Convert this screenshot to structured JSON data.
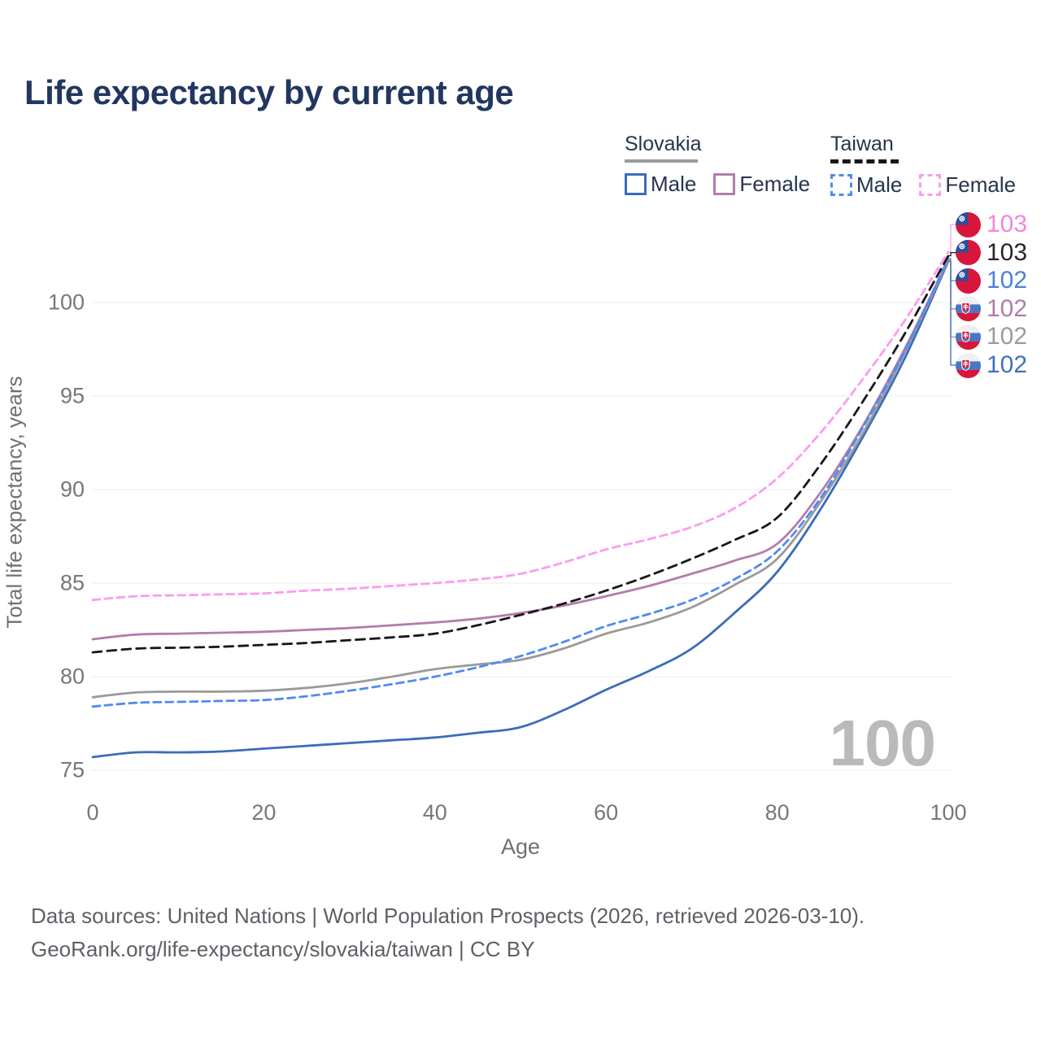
{
  "title": "Life expectancy by current age",
  "legend": {
    "groups": [
      {
        "country": "Slovakia",
        "line_style": "solid",
        "underline_color": "#9a9a9a",
        "items": [
          {
            "label": "Male",
            "color": "#3a6db8"
          },
          {
            "label": "Female",
            "color": "#b27dac"
          }
        ]
      },
      {
        "country": "Taiwan",
        "line_style": "dashed",
        "underline_color": "#17171b",
        "items": [
          {
            "label": "Male",
            "color": "#4f8bf0"
          },
          {
            "label": "Female",
            "color": "#fb9cf0"
          }
        ]
      }
    ]
  },
  "chart_data": {
    "type": "line",
    "title": "Life expectancy by current age",
    "xlabel": "Age",
    "ylabel": "Total life expectancy, years",
    "x": [
      0,
      5,
      10,
      15,
      20,
      25,
      30,
      35,
      40,
      45,
      50,
      55,
      60,
      65,
      70,
      75,
      80,
      85,
      90,
      95,
      100
    ],
    "xticks": [
      0,
      20,
      40,
      60,
      80,
      100
    ],
    "yticks": [
      75,
      80,
      85,
      90,
      95,
      100
    ],
    "xlim": [
      0,
      100
    ],
    "ylim": [
      74,
      104
    ],
    "grid": "horizontal",
    "legend_position": "top-right",
    "series": [
      {
        "key": "slovakia-male",
        "name": "Slovakia Male",
        "color": "#3a6db8",
        "dash": "none",
        "values": [
          75.7,
          75.95,
          75.95,
          76.0,
          76.15,
          76.3,
          76.45,
          76.6,
          76.75,
          77.0,
          77.3,
          78.2,
          79.3,
          80.3,
          81.5,
          83.4,
          85.6,
          88.9,
          92.8,
          97.1,
          102.2
        ]
      },
      {
        "key": "slovakia-total",
        "name": "Slovakia",
        "color": "#9a9a9a",
        "dash": "none",
        "values": [
          78.9,
          79.15,
          79.2,
          79.2,
          79.25,
          79.4,
          79.65,
          80.0,
          80.4,
          80.65,
          80.9,
          81.5,
          82.3,
          82.9,
          83.7,
          84.9,
          86.3,
          89.3,
          93.0,
          97.4,
          102.25
        ]
      },
      {
        "key": "slovakia-female",
        "name": "Slovakia Female",
        "color": "#b27dac",
        "dash": "none",
        "values": [
          82.0,
          82.25,
          82.3,
          82.35,
          82.4,
          82.5,
          82.6,
          82.75,
          82.9,
          83.1,
          83.4,
          83.8,
          84.3,
          84.85,
          85.5,
          86.2,
          87.1,
          89.8,
          93.4,
          97.6,
          102.3
        ]
      },
      {
        "key": "taiwan-male",
        "name": "Taiwan Male",
        "color": "#4f8bf0",
        "dash": "9 6",
        "values": [
          78.4,
          78.6,
          78.65,
          78.7,
          78.75,
          78.95,
          79.25,
          79.6,
          80.0,
          80.5,
          81.1,
          81.85,
          82.7,
          83.35,
          84.1,
          85.2,
          86.7,
          89.5,
          93.3,
          97.5,
          102.35
        ]
      },
      {
        "key": "taiwan-total",
        "name": "Taiwan",
        "color": "#17171b",
        "dash": "11 7",
        "values": [
          81.3,
          81.5,
          81.55,
          81.6,
          81.7,
          81.8,
          81.95,
          82.1,
          82.3,
          82.75,
          83.3,
          83.9,
          84.6,
          85.4,
          86.3,
          87.3,
          88.5,
          91.3,
          94.7,
          98.4,
          102.5
        ]
      },
      {
        "key": "taiwan-female",
        "name": "Taiwan Female",
        "color": "#fb9cf0",
        "dash": "9 6",
        "values": [
          84.1,
          84.3,
          84.35,
          84.4,
          84.45,
          84.6,
          84.7,
          84.85,
          85.0,
          85.2,
          85.5,
          86.1,
          86.8,
          87.35,
          88.0,
          89.0,
          90.6,
          93.0,
          95.9,
          99.1,
          102.7
        ]
      }
    ],
    "end_labels": [
      {
        "series": "taiwan-female",
        "value": "103",
        "text_color": "#f585da",
        "flag": "taiwan"
      },
      {
        "series": "taiwan-total",
        "value": "103",
        "text_color": "#26262a",
        "flag": "taiwan"
      },
      {
        "series": "taiwan-male",
        "value": "102",
        "text_color": "#4a80d8",
        "flag": "taiwan"
      },
      {
        "series": "slovakia-female",
        "value": "102",
        "text_color": "#ae7cae",
        "flag": "slovakia"
      },
      {
        "series": "slovakia-total",
        "value": "102",
        "text_color": "#9b9b9f",
        "flag": "slovakia"
      },
      {
        "series": "slovakia-male",
        "value": "102",
        "text_color": "#3f72bf",
        "flag": "slovakia"
      }
    ],
    "grid_color": "#ececef",
    "tick_color": "#76777b"
  },
  "watermark": "100",
  "footer": {
    "line1": "Data sources: United Nations | World Population Prospects (2026, retrieved 2026-03-10).",
    "line2": "GeoRank.org/life-expectancy/slovakia/taiwan | CC BY"
  }
}
